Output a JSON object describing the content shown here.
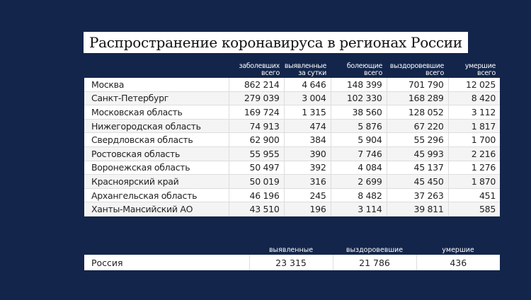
{
  "title": "Распространение коронавируса в регионах России",
  "columns": [
    {
      "l1": "заболевших",
      "l2": "всего"
    },
    {
      "l1": "выявленные",
      "l2": "за сутки"
    },
    {
      "l1": "болеющие",
      "l2": "всего"
    },
    {
      "l1": "выздоровевшие",
      "l2": "всего"
    },
    {
      "l1": "умершие",
      "l2": "всего"
    }
  ],
  "rows": [
    [
      "Москва",
      "862 214",
      "4 646",
      "148 399",
      "701 790",
      "12 025"
    ],
    [
      "Санкт-Петербург",
      "279 039",
      "3 004",
      "102 330",
      "168 289",
      "8 420"
    ],
    [
      "Московская область",
      "169 724",
      "1 315",
      "38 560",
      "128 052",
      "3 112"
    ],
    [
      "Нижегородская область",
      "74 913",
      "474",
      "5 876",
      "67 220",
      "1 817"
    ],
    [
      "Свердловская область",
      "62 900",
      "384",
      "5 904",
      "55 296",
      "1 700"
    ],
    [
      "Ростовская область",
      "55 955",
      "390",
      "7 746",
      "45 993",
      "2 216"
    ],
    [
      "Воронежская область",
      "50 497",
      "392",
      "4 084",
      "45 137",
      "1 276"
    ],
    [
      "Красноярский край",
      "50 019",
      "316",
      "2 699",
      "45 450",
      "1 870"
    ],
    [
      "Архангельская область",
      "46 196",
      "245",
      "8 482",
      "37 263",
      "451"
    ],
    [
      "Ханты-Мансийский АО",
      "43 510",
      "196",
      "3 114",
      "39 811",
      "585"
    ]
  ],
  "total": {
    "headers": [
      "выявленные",
      "выздоровевшие",
      "умершие"
    ],
    "row": [
      "Россия",
      "23 315",
      "21 786",
      "436"
    ]
  }
}
